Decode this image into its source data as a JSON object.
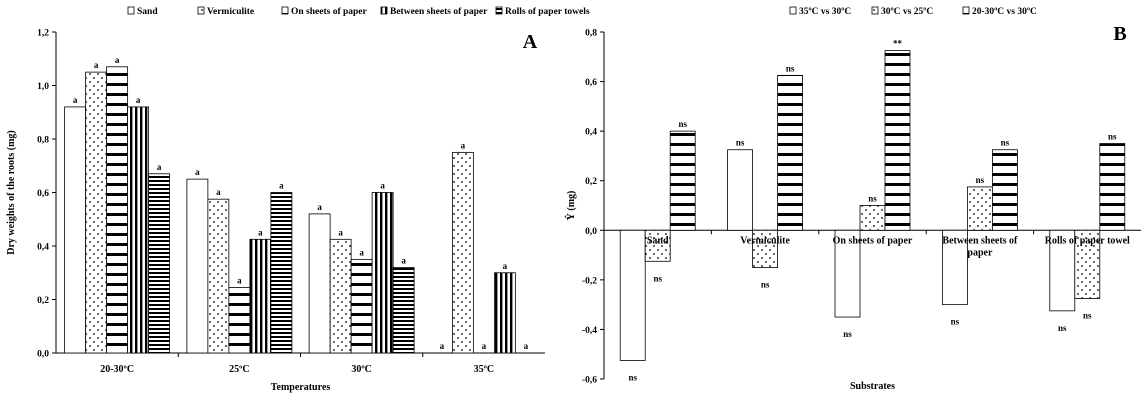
{
  "chart_data": [
    {
      "panel_letter": "A",
      "type": "bar",
      "title": "",
      "xlabel": "Temperatures",
      "ylabel": "Dry weights of the roots (mg)",
      "ylim": [
        0,
        1.2
      ],
      "y_ticks": [
        "0,0",
        "0,2",
        "0,4",
        "0,6",
        "0,8",
        "1,0",
        "1,2"
      ],
      "legend_position": "top",
      "categories": [
        "20-30ºC",
        "25ºC",
        "30ºC",
        "35ºC"
      ],
      "series": [
        {
          "name": "Sand",
          "pattern": "plain",
          "values": [
            0.92,
            0.65,
            0.52,
            0.0
          ],
          "labels": [
            "a",
            "a",
            "a",
            "a"
          ]
        },
        {
          "name": "Vermiculite",
          "pattern": "dots",
          "values": [
            1.05,
            0.575,
            0.425,
            0.75
          ],
          "labels": [
            "a",
            "a",
            "a",
            "a"
          ]
        },
        {
          "name": "On sheets of paper",
          "pattern": "dashes",
          "values": [
            1.07,
            0.245,
            0.35,
            0.0
          ],
          "labels": [
            "a",
            "a",
            "a",
            "a"
          ]
        },
        {
          "name": "Between sheets of paper",
          "pattern": "vertical",
          "values": [
            0.92,
            0.425,
            0.6,
            0.3
          ],
          "labels": [
            "a",
            "a",
            "a",
            "a"
          ]
        },
        {
          "name": "Rolls of paper towels",
          "pattern": "horizontal",
          "values": [
            0.67,
            0.6,
            0.32,
            0.0
          ],
          "labels": [
            "a",
            "a",
            "a",
            "a"
          ]
        }
      ]
    },
    {
      "panel_letter": "B",
      "type": "bar",
      "title": "",
      "xlabel": "Substrates",
      "ylabel": "Ŷ (mg)",
      "ylim": [
        -0.6,
        0.8
      ],
      "y_ticks": [
        "-0,6",
        "-0,4",
        "-0,2",
        "0,0",
        "0,2",
        "0,4",
        "0,6",
        "0,8"
      ],
      "legend_position": "top",
      "categories": [
        "Sand",
        "Vermiculite",
        "On sheets of paper",
        "Between sheets of paper",
        "Rolls of paper towel"
      ],
      "series": [
        {
          "name": "35ºC vs 30ºC",
          "pattern": "plain",
          "values": [
            -0.525,
            0.325,
            -0.35,
            -0.3,
            -0.325
          ],
          "labels": [
            "ns",
            "ns",
            "ns",
            "ns",
            "ns"
          ]
        },
        {
          "name": "30ºC vs 25ºC",
          "pattern": "dots",
          "values": [
            -0.125,
            -0.15,
            0.1,
            0.175,
            -0.275
          ],
          "labels": [
            "ns",
            "ns",
            "ns",
            "ns",
            "ns"
          ]
        },
        {
          "name": "20-30ºC vs 30ºC",
          "pattern": "dashes",
          "values": [
            0.4,
            0.625,
            0.725,
            0.325,
            0.35
          ],
          "labels": [
            "ns",
            "ns",
            "**",
            "ns",
            "ns"
          ]
        }
      ]
    }
  ]
}
